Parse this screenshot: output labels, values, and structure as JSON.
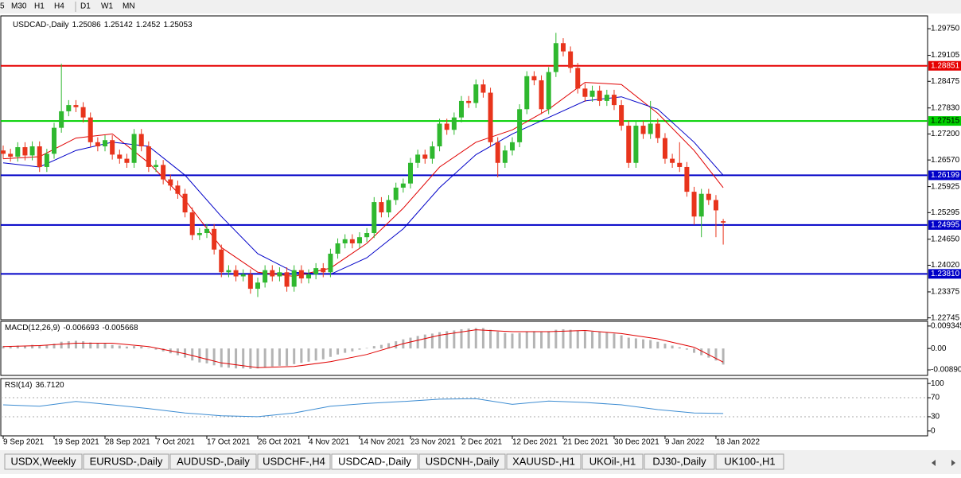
{
  "toolbar": {
    "timeframes": [
      "5",
      "M30",
      "H1",
      "H4",
      "D1",
      "W1",
      "MN"
    ]
  },
  "chart_data": [
    {
      "type": "candlestick",
      "title": "USDCAD-,Daily",
      "up_color": "#2fb82f",
      "down_color": "#e8341c",
      "open": [
        1.268,
        1.2672,
        1.2665,
        1.2688,
        1.2668,
        1.269,
        1.264,
        1.2672,
        1.2735,
        1.2775,
        1.279,
        1.2785,
        1.276,
        1.27,
        1.269,
        1.2705,
        1.267,
        1.266,
        1.265,
        1.272,
        1.269,
        1.264,
        1.2645,
        1.261,
        1.2595,
        1.2575,
        1.253,
        1.2475,
        1.248,
        1.249,
        1.244,
        1.2385,
        1.239,
        1.2375,
        1.238,
        1.2345,
        1.236,
        1.239,
        1.2375,
        1.2385,
        1.235,
        1.239,
        1.237,
        1.238,
        1.2395,
        1.2385,
        1.243,
        1.2455,
        1.2465,
        1.2455,
        1.247,
        1.248,
        1.2555,
        1.253,
        1.256,
        1.259,
        1.26,
        1.265,
        1.267,
        1.266,
        1.269,
        1.2745,
        1.273,
        1.276,
        1.28,
        1.2795,
        1.284,
        1.282,
        1.27,
        1.265,
        1.268,
        1.27,
        1.278,
        1.286,
        1.285,
        1.278,
        1.287,
        1.294,
        1.292,
        1.288,
        1.283,
        1.281,
        1.2825,
        1.28,
        1.2815,
        1.279,
        1.274,
        1.265,
        1.274,
        1.272,
        1.2745,
        1.271,
        1.266,
        1.265,
        1.264,
        1.258,
        1.252,
        1.2575,
        1.256,
        1.25086
      ],
      "high": [
        1.2692,
        1.2684,
        1.27,
        1.27,
        1.2702,
        1.2702,
        1.2684,
        1.2747,
        1.289,
        1.2802,
        1.2802,
        1.2797,
        1.2772,
        1.2712,
        1.2717,
        1.2717,
        1.2682,
        1.2672,
        1.2732,
        1.2732,
        1.2702,
        1.2657,
        1.2657,
        1.2622,
        1.2607,
        1.2587,
        1.2542,
        1.2492,
        1.2502,
        1.2502,
        1.2452,
        1.2402,
        1.2402,
        1.2392,
        1.2392,
        1.2372,
        1.2402,
        1.2402,
        1.2397,
        1.2397,
        1.2402,
        1.2402,
        1.2392,
        1.2407,
        1.2407,
        1.2442,
        1.2467,
        1.2477,
        1.2477,
        1.2482,
        1.2492,
        1.2567,
        1.2567,
        1.2572,
        1.2602,
        1.2612,
        1.2662,
        1.2682,
        1.2682,
        1.2702,
        1.2757,
        1.2757,
        1.2772,
        1.2812,
        1.2812,
        1.2852,
        1.2852,
        1.2832,
        1.2712,
        1.2692,
        1.2712,
        1.2792,
        1.2872,
        1.2872,
        1.2862,
        1.2882,
        1.2965,
        1.2952,
        1.2932,
        1.2892,
        1.2842,
        1.2837,
        1.2837,
        1.2827,
        1.2827,
        1.2802,
        1.2752,
        1.2752,
        1.2752,
        1.28,
        1.2757,
        1.2722,
        1.2672,
        1.27,
        1.2652,
        1.2592,
        1.2587,
        1.2587,
        1.2572,
        1.25142
      ],
      "low": [
        1.266,
        1.2653,
        1.2653,
        1.2656,
        1.2656,
        1.2628,
        1.2628,
        1.266,
        1.2723,
        1.2763,
        1.2773,
        1.2748,
        1.2688,
        1.2678,
        1.2678,
        1.2658,
        1.2648,
        1.2638,
        1.2638,
        1.2678,
        1.2628,
        1.2628,
        1.2598,
        1.2583,
        1.2563,
        1.2518,
        1.2463,
        1.2463,
        1.2468,
        1.2428,
        1.2373,
        1.2373,
        1.2363,
        1.2363,
        1.2333,
        1.2325,
        1.2348,
        1.2363,
        1.2363,
        1.2338,
        1.2338,
        1.2358,
        1.2358,
        1.2368,
        1.2373,
        1.2373,
        1.2418,
        1.2443,
        1.2443,
        1.2443,
        1.2458,
        1.2468,
        1.2518,
        1.2518,
        1.2548,
        1.2578,
        1.2588,
        1.2638,
        1.2648,
        1.2648,
        1.2678,
        1.2718,
        1.2718,
        1.2748,
        1.2783,
        1.2783,
        1.2808,
        1.2688,
        1.2615,
        1.2638,
        1.2668,
        1.2688,
        1.2768,
        1.2838,
        1.2768,
        1.2768,
        1.2858,
        1.2908,
        1.2868,
        1.2818,
        1.2798,
        1.2798,
        1.2788,
        1.2788,
        1.2778,
        1.2728,
        1.2638,
        1.2638,
        1.2708,
        1.2708,
        1.2698,
        1.2648,
        1.2638,
        1.2628,
        1.2568,
        1.25,
        1.247,
        1.2548,
        1.247,
        1.2452
      ],
      "close": [
        1.2672,
        1.2665,
        1.2688,
        1.2668,
        1.269,
        1.264,
        1.2672,
        1.2735,
        1.2775,
        1.279,
        1.2785,
        1.276,
        1.27,
        1.269,
        1.2705,
        1.267,
        1.266,
        1.265,
        1.272,
        1.269,
        1.264,
        1.2645,
        1.261,
        1.2595,
        1.2575,
        1.253,
        1.2475,
        1.248,
        1.249,
        1.244,
        1.2385,
        1.239,
        1.2375,
        1.238,
        1.2345,
        1.236,
        1.239,
        1.2375,
        1.2385,
        1.235,
        1.239,
        1.237,
        1.238,
        1.2395,
        1.2385,
        1.243,
        1.2455,
        1.2465,
        1.2455,
        1.247,
        1.248,
        1.2555,
        1.253,
        1.256,
        1.259,
        1.26,
        1.265,
        1.267,
        1.266,
        1.269,
        1.2745,
        1.273,
        1.276,
        1.28,
        1.2795,
        1.284,
        1.282,
        1.27,
        1.265,
        1.268,
        1.27,
        1.278,
        1.286,
        1.285,
        1.278,
        1.287,
        1.294,
        1.292,
        1.288,
        1.283,
        1.281,
        1.2825,
        1.28,
        1.2815,
        1.279,
        1.274,
        1.265,
        1.274,
        1.272,
        1.2745,
        1.271,
        1.266,
        1.265,
        1.264,
        1.258,
        1.252,
        1.2575,
        1.256,
        1.2535,
        1.25053
      ],
      "overlays": [
        {
          "color": "#e00000",
          "x": [
            0,
            5,
            10,
            15,
            20,
            25,
            30,
            35,
            40,
            45,
            50,
            55,
            60,
            65,
            70,
            75,
            80,
            85,
            90,
            95,
            99
          ],
          "values": [
            1.266,
            1.2665,
            1.271,
            1.272,
            1.265,
            1.256,
            1.2445,
            1.2385,
            1.2375,
            1.2395,
            1.2455,
            1.254,
            1.264,
            1.27,
            1.273,
            1.278,
            1.2845,
            1.284,
            1.277,
            1.268,
            1.259
          ]
        },
        {
          "color": "#0000c8",
          "x": [
            0,
            5,
            10,
            15,
            20,
            25,
            30,
            35,
            40,
            45,
            50,
            55,
            60,
            65,
            70,
            75,
            80,
            85,
            90,
            95,
            99
          ],
          "values": [
            1.265,
            1.264,
            1.268,
            1.27,
            1.269,
            1.262,
            1.252,
            1.243,
            1.2385,
            1.238,
            1.242,
            1.249,
            1.259,
            1.267,
            1.272,
            1.276,
            1.28,
            1.281,
            1.278,
            1.27,
            1.262
          ]
        }
      ],
      "hlines": [
        {
          "value": 1.28851,
          "color": "#e60000",
          "text_color": "#ffffff"
        },
        {
          "value": 1.27515,
          "color": "#00d000",
          "text_color": "#000000"
        },
        {
          "value": 1.26199,
          "color": "#0000c8",
          "text_color": "#ffffff"
        },
        {
          "value": 1.24995,
          "color": "#0000c8",
          "text_color": "#ffffff"
        },
        {
          "value": 1.2381,
          "label": "1.23810",
          "color": "#0000c8",
          "text_color": "#ffffff"
        }
      ],
      "ylim": [
        1.227,
        1.3006
      ],
      "yticks": [
        {
          "value": 1.2975,
          "label": "1.29750"
        },
        1.29105,
        1.28475,
        {
          "value": 1.2783,
          "label": "1.27830"
        },
        {
          "value": 1.272,
          "label": "1.27200"
        },
        {
          "value": 1.2657,
          "label": "1.26570"
        },
        1.25925,
        1.25295,
        {
          "value": 1.2465,
          "label": "1.24650"
        },
        {
          "value": 1.2402,
          "label": "1.24020"
        },
        1.23375,
        1.22745
      ],
      "xlim": [
        -0.33,
        127.1
      ],
      "xticks": [
        {
          "value": 0,
          "label": "9 Sep 2021"
        },
        {
          "value": 7,
          "label": "19 Sep 2021"
        },
        {
          "value": 14,
          "label": "28 Sep 2021"
        },
        {
          "value": 21,
          "label": "7 Oct 2021"
        },
        {
          "value": 28,
          "label": "17 Oct 2021"
        },
        {
          "value": 35,
          "label": "26 Oct 2021"
        },
        {
          "value": 42,
          "label": "4 Nov 2021"
        },
        {
          "value": 49,
          "label": "14 Nov 2021"
        },
        {
          "value": 56,
          "label": "23 Nov 2021"
        },
        {
          "value": 63,
          "label": "2 Dec 2021"
        },
        {
          "value": 70,
          "label": "12 Dec 2021"
        },
        {
          "value": 77,
          "label": "21 Dec 2021"
        },
        {
          "value": 84,
          "label": "30 Dec 2021"
        },
        {
          "value": 91,
          "label": "9 Jan 2022"
        },
        {
          "value": 98,
          "label": "18 Jan 2022"
        }
      ]
    },
    {
      "type": "macd",
      "title": "MACD(12,26,9)",
      "color": "#b4b4b4",
      "values": [
        0.001,
        0.001,
        0.0012,
        0.0012,
        0.0015,
        0.0013,
        0.0015,
        0.002,
        0.0028,
        0.003,
        0.0032,
        0.003,
        0.0025,
        0.0022,
        0.002,
        0.0015,
        0.0012,
        0.0008,
        0.001,
        0.0008,
        0.0002,
        -0.0005,
        -0.0012,
        -0.002,
        -0.0028,
        -0.0038,
        -0.005,
        -0.0058,
        -0.0062,
        -0.007,
        -0.0078,
        -0.008,
        -0.0083,
        -0.0083,
        -0.0085,
        -0.0083,
        -0.0078,
        -0.0075,
        -0.0072,
        -0.0072,
        -0.0065,
        -0.006,
        -0.0055,
        -0.005,
        -0.0045,
        -0.0035,
        -0.0025,
        -0.0018,
        -0.0012,
        -0.0005,
        0.0002,
        0.001,
        0.0015,
        0.0022,
        0.003,
        0.0038,
        0.0045,
        0.0052,
        0.0058,
        0.0062,
        0.0068,
        0.0072,
        0.0075,
        0.008,
        0.0083,
        0.0085,
        0.0085,
        0.0078,
        0.007,
        0.0065,
        0.0062,
        0.0065,
        0.007,
        0.0072,
        0.007,
        0.0072,
        0.0078,
        0.008,
        0.0078,
        0.0075,
        0.0072,
        0.007,
        0.0068,
        0.0066,
        0.0062,
        0.0055,
        0.0045,
        0.0042,
        0.0038,
        0.0035,
        0.0028,
        0.002,
        0.0012,
        0.0005,
        -0.0005,
        -0.0018,
        -0.0028,
        -0.0038,
        -0.005,
        -0.006693
      ],
      "signal": {
        "color": "#e00000",
        "x": [
          0,
          5,
          10,
          15,
          20,
          25,
          30,
          35,
          40,
          45,
          50,
          55,
          60,
          65,
          70,
          75,
          80,
          85,
          90,
          95,
          99
        ],
        "values": [
          0.0008,
          0.0012,
          0.0022,
          0.0022,
          0.0008,
          -0.0022,
          -0.006,
          -0.008,
          -0.0075,
          -0.0055,
          -0.0025,
          0.002,
          0.0055,
          0.0078,
          0.007,
          0.007,
          0.0075,
          0.0062,
          0.004,
          0.0005,
          -0.005668
        ]
      },
      "ylim": [
        -0.0112,
        0.0113
      ],
      "yticks": [
        0.009345,
        {
          "value": 0,
          "label": "0.00"
        },
        -0.008902
      ]
    },
    {
      "type": "line",
      "title": "RSI(14)",
      "color": "#3c8cd2",
      "x": [
        0,
        5,
        10,
        15,
        20,
        25,
        30,
        35,
        40,
        45,
        50,
        55,
        60,
        65,
        70,
        75,
        80,
        85,
        90,
        95,
        99
      ],
      "values": [
        55,
        52,
        62,
        55,
        47,
        38,
        32,
        30,
        38,
        52,
        58,
        62,
        67,
        68,
        56,
        63,
        60,
        55,
        45,
        38,
        36.712
      ],
      "value_labels": [
        null,
        null,
        null,
        null,
        null,
        null,
        null,
        null,
        null,
        null,
        null,
        null,
        null,
        null,
        null,
        null,
        null,
        null,
        null,
        null,
        "36.7120"
      ],
      "levels": [
        70,
        30
      ],
      "ylim": [
        -10.3,
        110.3
      ],
      "yticks": [
        100,
        70,
        30,
        0
      ]
    }
  ],
  "tabs": {
    "items": [
      "USDX,Weekly",
      "EURUSD-,Daily",
      "AUDUSD-,Daily",
      "USDCHF-,H4",
      "USDCAD-,Daily",
      "USDCNH-,Daily",
      "XAUUSD-,H1",
      "UKOil-,H1",
      "DJ30-,Daily",
      "UK100-,H1"
    ],
    "active": 4
  }
}
